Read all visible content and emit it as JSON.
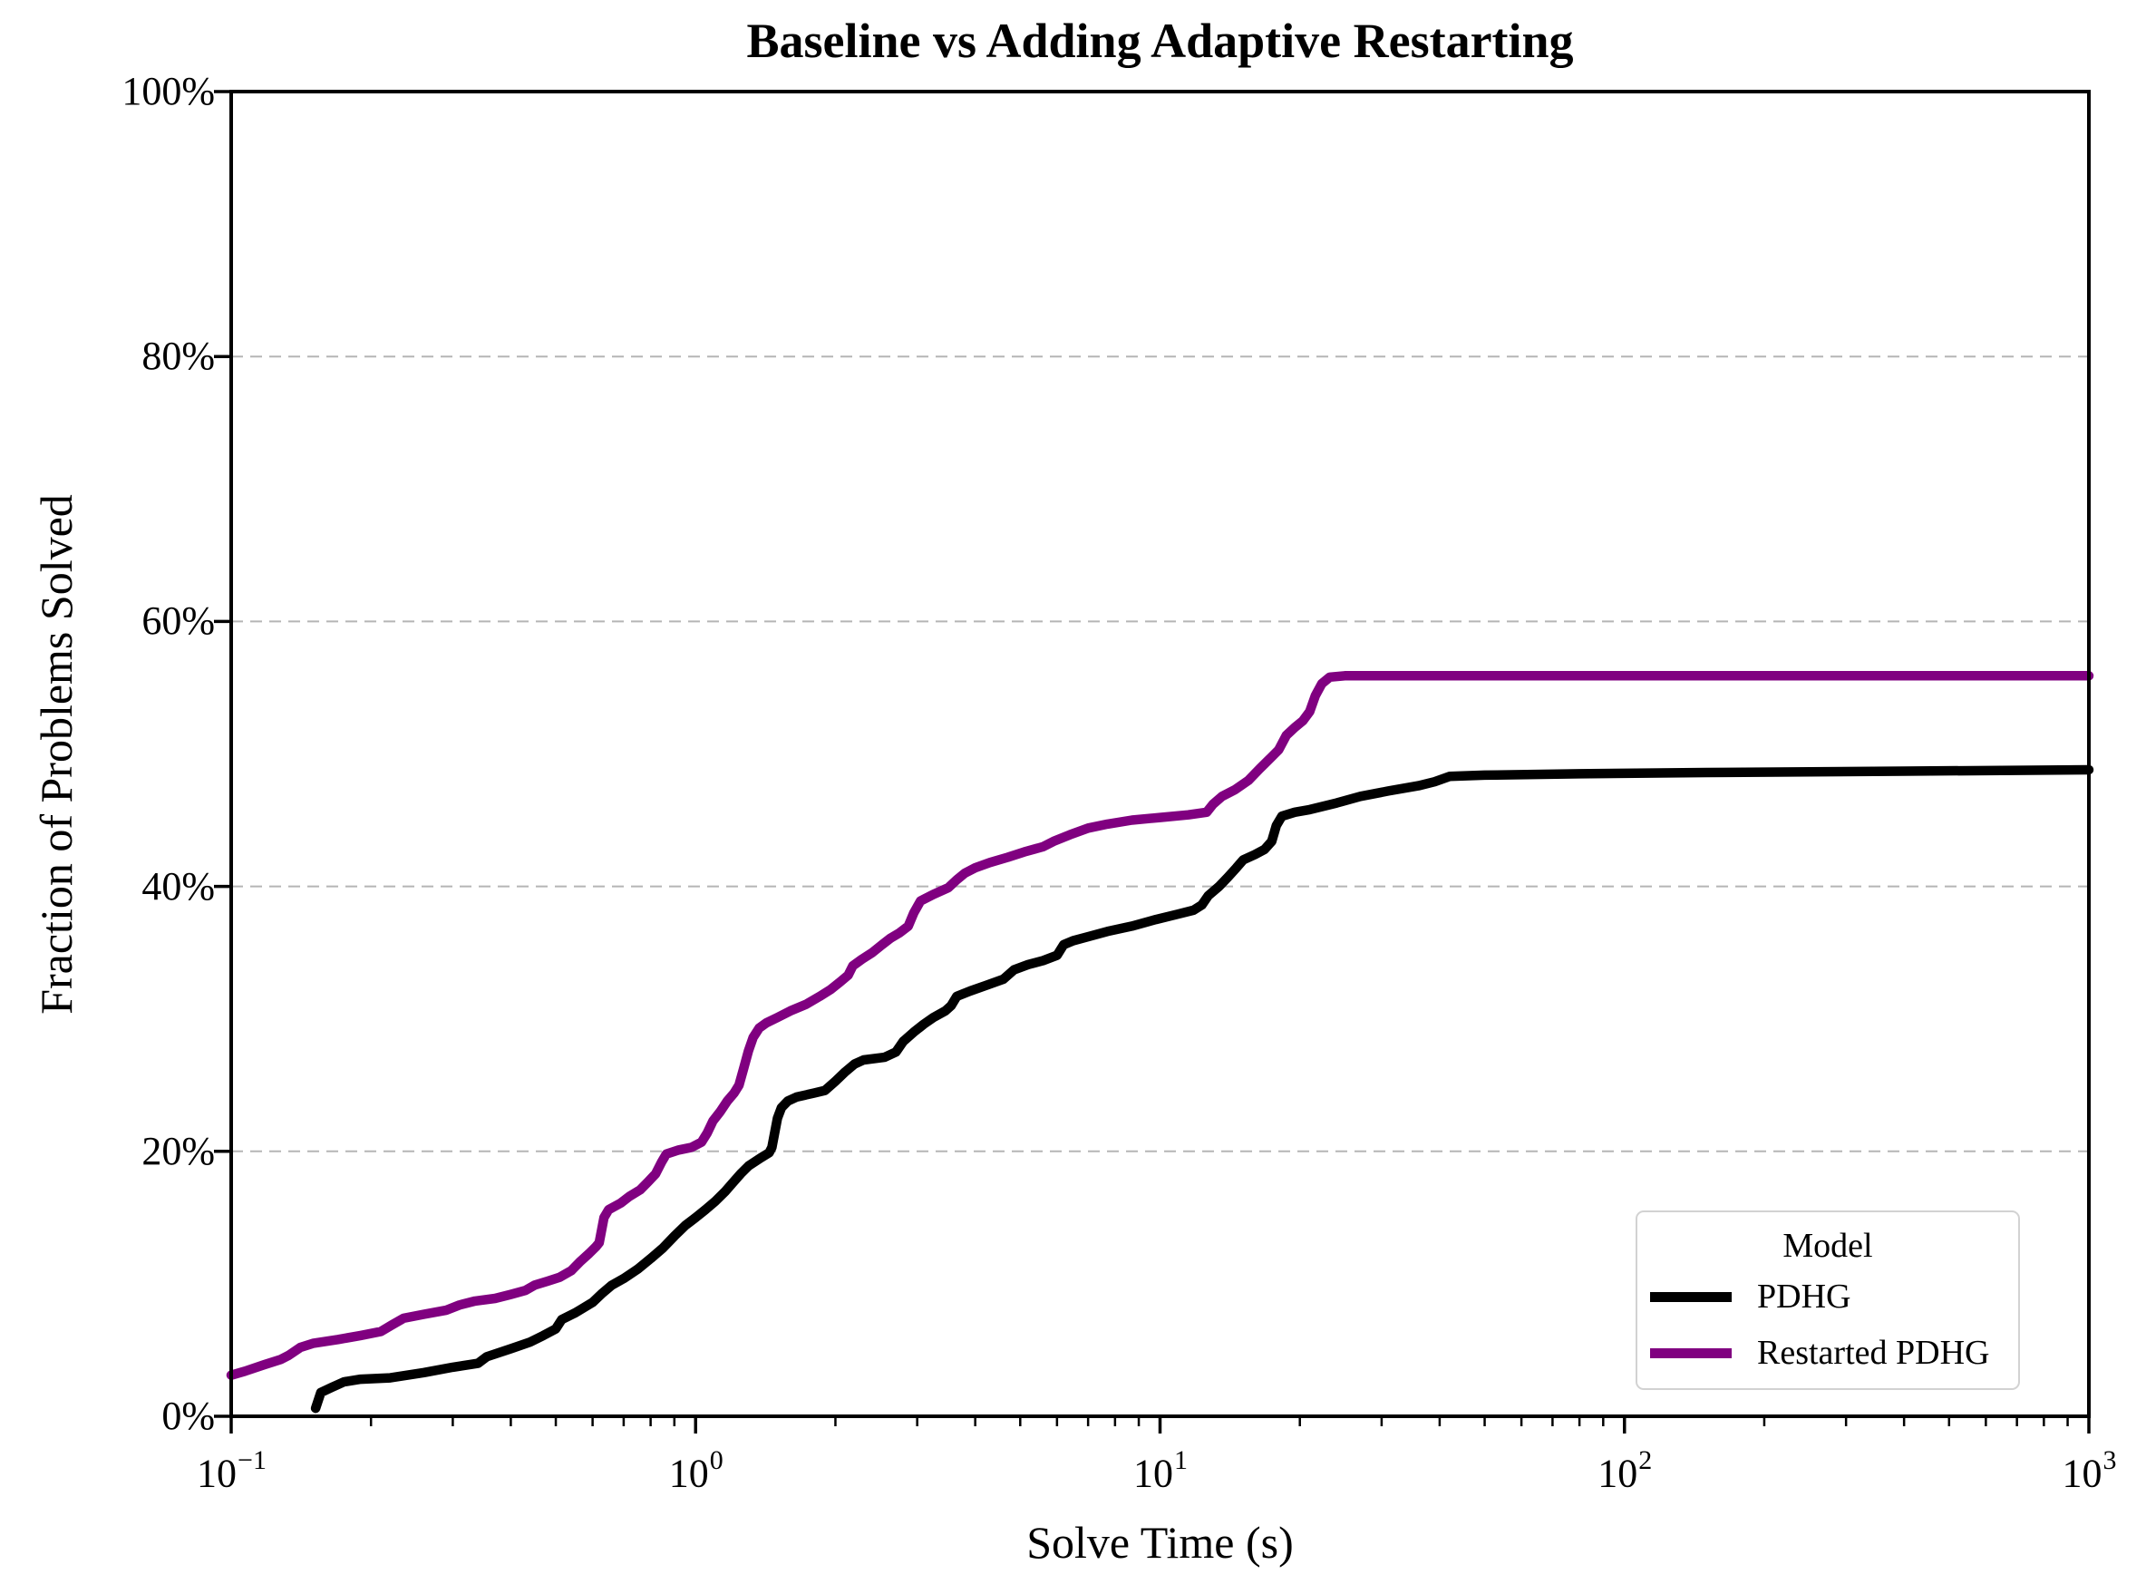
{
  "chart_data": {
    "type": "line",
    "title": "Baseline vs Adding Adaptive Restarting",
    "xlabel": "Solve Time (s)",
    "ylabel": "Fraction of Problems Solved",
    "x_scale": "log",
    "xlim_exponents": [
      -1,
      3
    ],
    "ylim": [
      0,
      100
    ],
    "x_ticks": {
      "base": "10",
      "exponents": [
        -1,
        0,
        1,
        2,
        3
      ],
      "labels": [
        "−1",
        "0",
        "1",
        "2",
        "3"
      ]
    },
    "y_ticks": {
      "values": [
        0,
        20,
        40,
        60,
        80,
        100
      ],
      "labels": [
        "0%",
        "20%",
        "40%",
        "60%",
        "80%",
        "100%"
      ]
    },
    "grid": "horizontal-dashed",
    "grid_values": [
      20,
      40,
      60,
      80
    ],
    "grid_color": "#b5b5b5",
    "legend": {
      "title": "Model",
      "position": "lower-right",
      "entries": [
        {
          "label": "PDHG",
          "color": "#000000"
        },
        {
          "label": "Restarted PDHG",
          "color": "#800080"
        }
      ]
    },
    "final_values_pct": {
      "PDHG": 48.8,
      "Restarted PDHG": 55.9
    },
    "series": [
      {
        "name": "PDHG",
        "color": "#000000",
        "points": [
          [
            0.152,
            0.6
          ],
          [
            0.156,
            1.8
          ],
          [
            0.165,
            2.2
          ],
          [
            0.175,
            2.6
          ],
          [
            0.19,
            2.8
          ],
          [
            0.22,
            2.9
          ],
          [
            0.26,
            3.3
          ],
          [
            0.3,
            3.7
          ],
          [
            0.34,
            4.0
          ],
          [
            0.355,
            4.5
          ],
          [
            0.4,
            5.1
          ],
          [
            0.44,
            5.6
          ],
          [
            0.47,
            6.1
          ],
          [
            0.5,
            6.6
          ],
          [
            0.515,
            7.3
          ],
          [
            0.55,
            7.8
          ],
          [
            0.6,
            8.6
          ],
          [
            0.63,
            9.3
          ],
          [
            0.66,
            9.9
          ],
          [
            0.7,
            10.4
          ],
          [
            0.75,
            11.1
          ],
          [
            0.8,
            11.9
          ],
          [
            0.85,
            12.7
          ],
          [
            0.9,
            13.6
          ],
          [
            0.95,
            14.4
          ],
          [
            1.0,
            15.0
          ],
          [
            1.05,
            15.6
          ],
          [
            1.1,
            16.2
          ],
          [
            1.16,
            17.0
          ],
          [
            1.2,
            17.6
          ],
          [
            1.25,
            18.3
          ],
          [
            1.3,
            18.9
          ],
          [
            1.38,
            19.5
          ],
          [
            1.44,
            19.9
          ],
          [
            1.46,
            20.3
          ],
          [
            1.5,
            22.5
          ],
          [
            1.53,
            23.3
          ],
          [
            1.58,
            23.8
          ],
          [
            1.65,
            24.1
          ],
          [
            1.8,
            24.4
          ],
          [
            1.9,
            24.6
          ],
          [
            2.0,
            25.3
          ],
          [
            2.1,
            26.0
          ],
          [
            2.2,
            26.6
          ],
          [
            2.3,
            26.9
          ],
          [
            2.55,
            27.1
          ],
          [
            2.7,
            27.5
          ],
          [
            2.8,
            28.3
          ],
          [
            2.95,
            29.0
          ],
          [
            3.1,
            29.6
          ],
          [
            3.25,
            30.1
          ],
          [
            3.45,
            30.6
          ],
          [
            3.55,
            31.0
          ],
          [
            3.65,
            31.7
          ],
          [
            3.9,
            32.1
          ],
          [
            4.2,
            32.5
          ],
          [
            4.6,
            33.0
          ],
          [
            4.85,
            33.7
          ],
          [
            5.2,
            34.1
          ],
          [
            5.6,
            34.4
          ],
          [
            6.0,
            34.8
          ],
          [
            6.2,
            35.6
          ],
          [
            6.5,
            35.9
          ],
          [
            7.0,
            36.2
          ],
          [
            7.7,
            36.6
          ],
          [
            8.7,
            37.0
          ],
          [
            9.8,
            37.5
          ],
          [
            10.9,
            37.9
          ],
          [
            11.8,
            38.2
          ],
          [
            12.3,
            38.6
          ],
          [
            12.7,
            39.3
          ],
          [
            13.4,
            40.0
          ],
          [
            14.0,
            40.7
          ],
          [
            14.6,
            41.4
          ],
          [
            15.1,
            42.0
          ],
          [
            16.0,
            42.4
          ],
          [
            16.8,
            42.8
          ],
          [
            17.4,
            43.4
          ],
          [
            17.8,
            44.6
          ],
          [
            18.3,
            45.3
          ],
          [
            19.5,
            45.6
          ],
          [
            21,
            45.8
          ],
          [
            24,
            46.3
          ],
          [
            27,
            46.8
          ],
          [
            31,
            47.2
          ],
          [
            36,
            47.6
          ],
          [
            39,
            47.9
          ],
          [
            42,
            48.3
          ],
          [
            50,
            48.4
          ],
          [
            80,
            48.5
          ],
          [
            150,
            48.6
          ],
          [
            400,
            48.7
          ],
          [
            1000,
            48.8
          ]
        ]
      },
      {
        "name": "Restarted PDHG",
        "color": "#800080",
        "points": [
          [
            0.1,
            3.1
          ],
          [
            0.107,
            3.4
          ],
          [
            0.118,
            3.9
          ],
          [
            0.128,
            4.3
          ],
          [
            0.133,
            4.6
          ],
          [
            0.141,
            5.2
          ],
          [
            0.15,
            5.5
          ],
          [
            0.17,
            5.8
          ],
          [
            0.19,
            6.1
          ],
          [
            0.21,
            6.4
          ],
          [
            0.222,
            6.9
          ],
          [
            0.235,
            7.4
          ],
          [
            0.26,
            7.7
          ],
          [
            0.29,
            8.0
          ],
          [
            0.31,
            8.4
          ],
          [
            0.335,
            8.7
          ],
          [
            0.37,
            8.9
          ],
          [
            0.4,
            9.2
          ],
          [
            0.43,
            9.5
          ],
          [
            0.45,
            9.9
          ],
          [
            0.48,
            10.2
          ],
          [
            0.51,
            10.5
          ],
          [
            0.54,
            11.0
          ],
          [
            0.565,
            11.7
          ],
          [
            0.59,
            12.3
          ],
          [
            0.61,
            12.8
          ],
          [
            0.62,
            13.1
          ],
          [
            0.635,
            15.0
          ],
          [
            0.65,
            15.6
          ],
          [
            0.69,
            16.1
          ],
          [
            0.72,
            16.6
          ],
          [
            0.76,
            17.1
          ],
          [
            0.79,
            17.7
          ],
          [
            0.82,
            18.3
          ],
          [
            0.845,
            19.2
          ],
          [
            0.865,
            19.8
          ],
          [
            0.92,
            20.1
          ],
          [
            0.98,
            20.3
          ],
          [
            1.03,
            20.7
          ],
          [
            1.06,
            21.4
          ],
          [
            1.09,
            22.3
          ],
          [
            1.13,
            23.0
          ],
          [
            1.17,
            23.8
          ],
          [
            1.21,
            24.4
          ],
          [
            1.24,
            25.0
          ],
          [
            1.27,
            26.3
          ],
          [
            1.3,
            27.6
          ],
          [
            1.33,
            28.6
          ],
          [
            1.37,
            29.3
          ],
          [
            1.42,
            29.7
          ],
          [
            1.5,
            30.1
          ],
          [
            1.6,
            30.6
          ],
          [
            1.73,
            31.1
          ],
          [
            1.85,
            31.7
          ],
          [
            1.95,
            32.2
          ],
          [
            2.05,
            32.8
          ],
          [
            2.13,
            33.3
          ],
          [
            2.18,
            34.0
          ],
          [
            2.28,
            34.5
          ],
          [
            2.4,
            35.0
          ],
          [
            2.52,
            35.6
          ],
          [
            2.63,
            36.1
          ],
          [
            2.75,
            36.5
          ],
          [
            2.87,
            37.0
          ],
          [
            2.95,
            38.0
          ],
          [
            3.05,
            38.9
          ],
          [
            3.25,
            39.4
          ],
          [
            3.5,
            39.9
          ],
          [
            3.65,
            40.5
          ],
          [
            3.8,
            41.0
          ],
          [
            4.0,
            41.4
          ],
          [
            4.3,
            41.8
          ],
          [
            4.7,
            42.2
          ],
          [
            5.1,
            42.6
          ],
          [
            5.6,
            43.0
          ],
          [
            5.9,
            43.4
          ],
          [
            6.4,
            43.9
          ],
          [
            7.0,
            44.4
          ],
          [
            7.7,
            44.7
          ],
          [
            8.7,
            45.0
          ],
          [
            10.0,
            45.2
          ],
          [
            11.5,
            45.4
          ],
          [
            12.6,
            45.6
          ],
          [
            13.0,
            46.2
          ],
          [
            13.6,
            46.8
          ],
          [
            14.5,
            47.3
          ],
          [
            15.5,
            48.0
          ],
          [
            16.4,
            48.9
          ],
          [
            17.2,
            49.6
          ],
          [
            18.0,
            50.3
          ],
          [
            18.7,
            51.4
          ],
          [
            19.5,
            52.0
          ],
          [
            20.3,
            52.5
          ],
          [
            21.0,
            53.2
          ],
          [
            21.6,
            54.4
          ],
          [
            22.3,
            55.3
          ],
          [
            23.2,
            55.8
          ],
          [
            25,
            55.9
          ],
          [
            1000,
            55.9
          ]
        ]
      }
    ]
  }
}
